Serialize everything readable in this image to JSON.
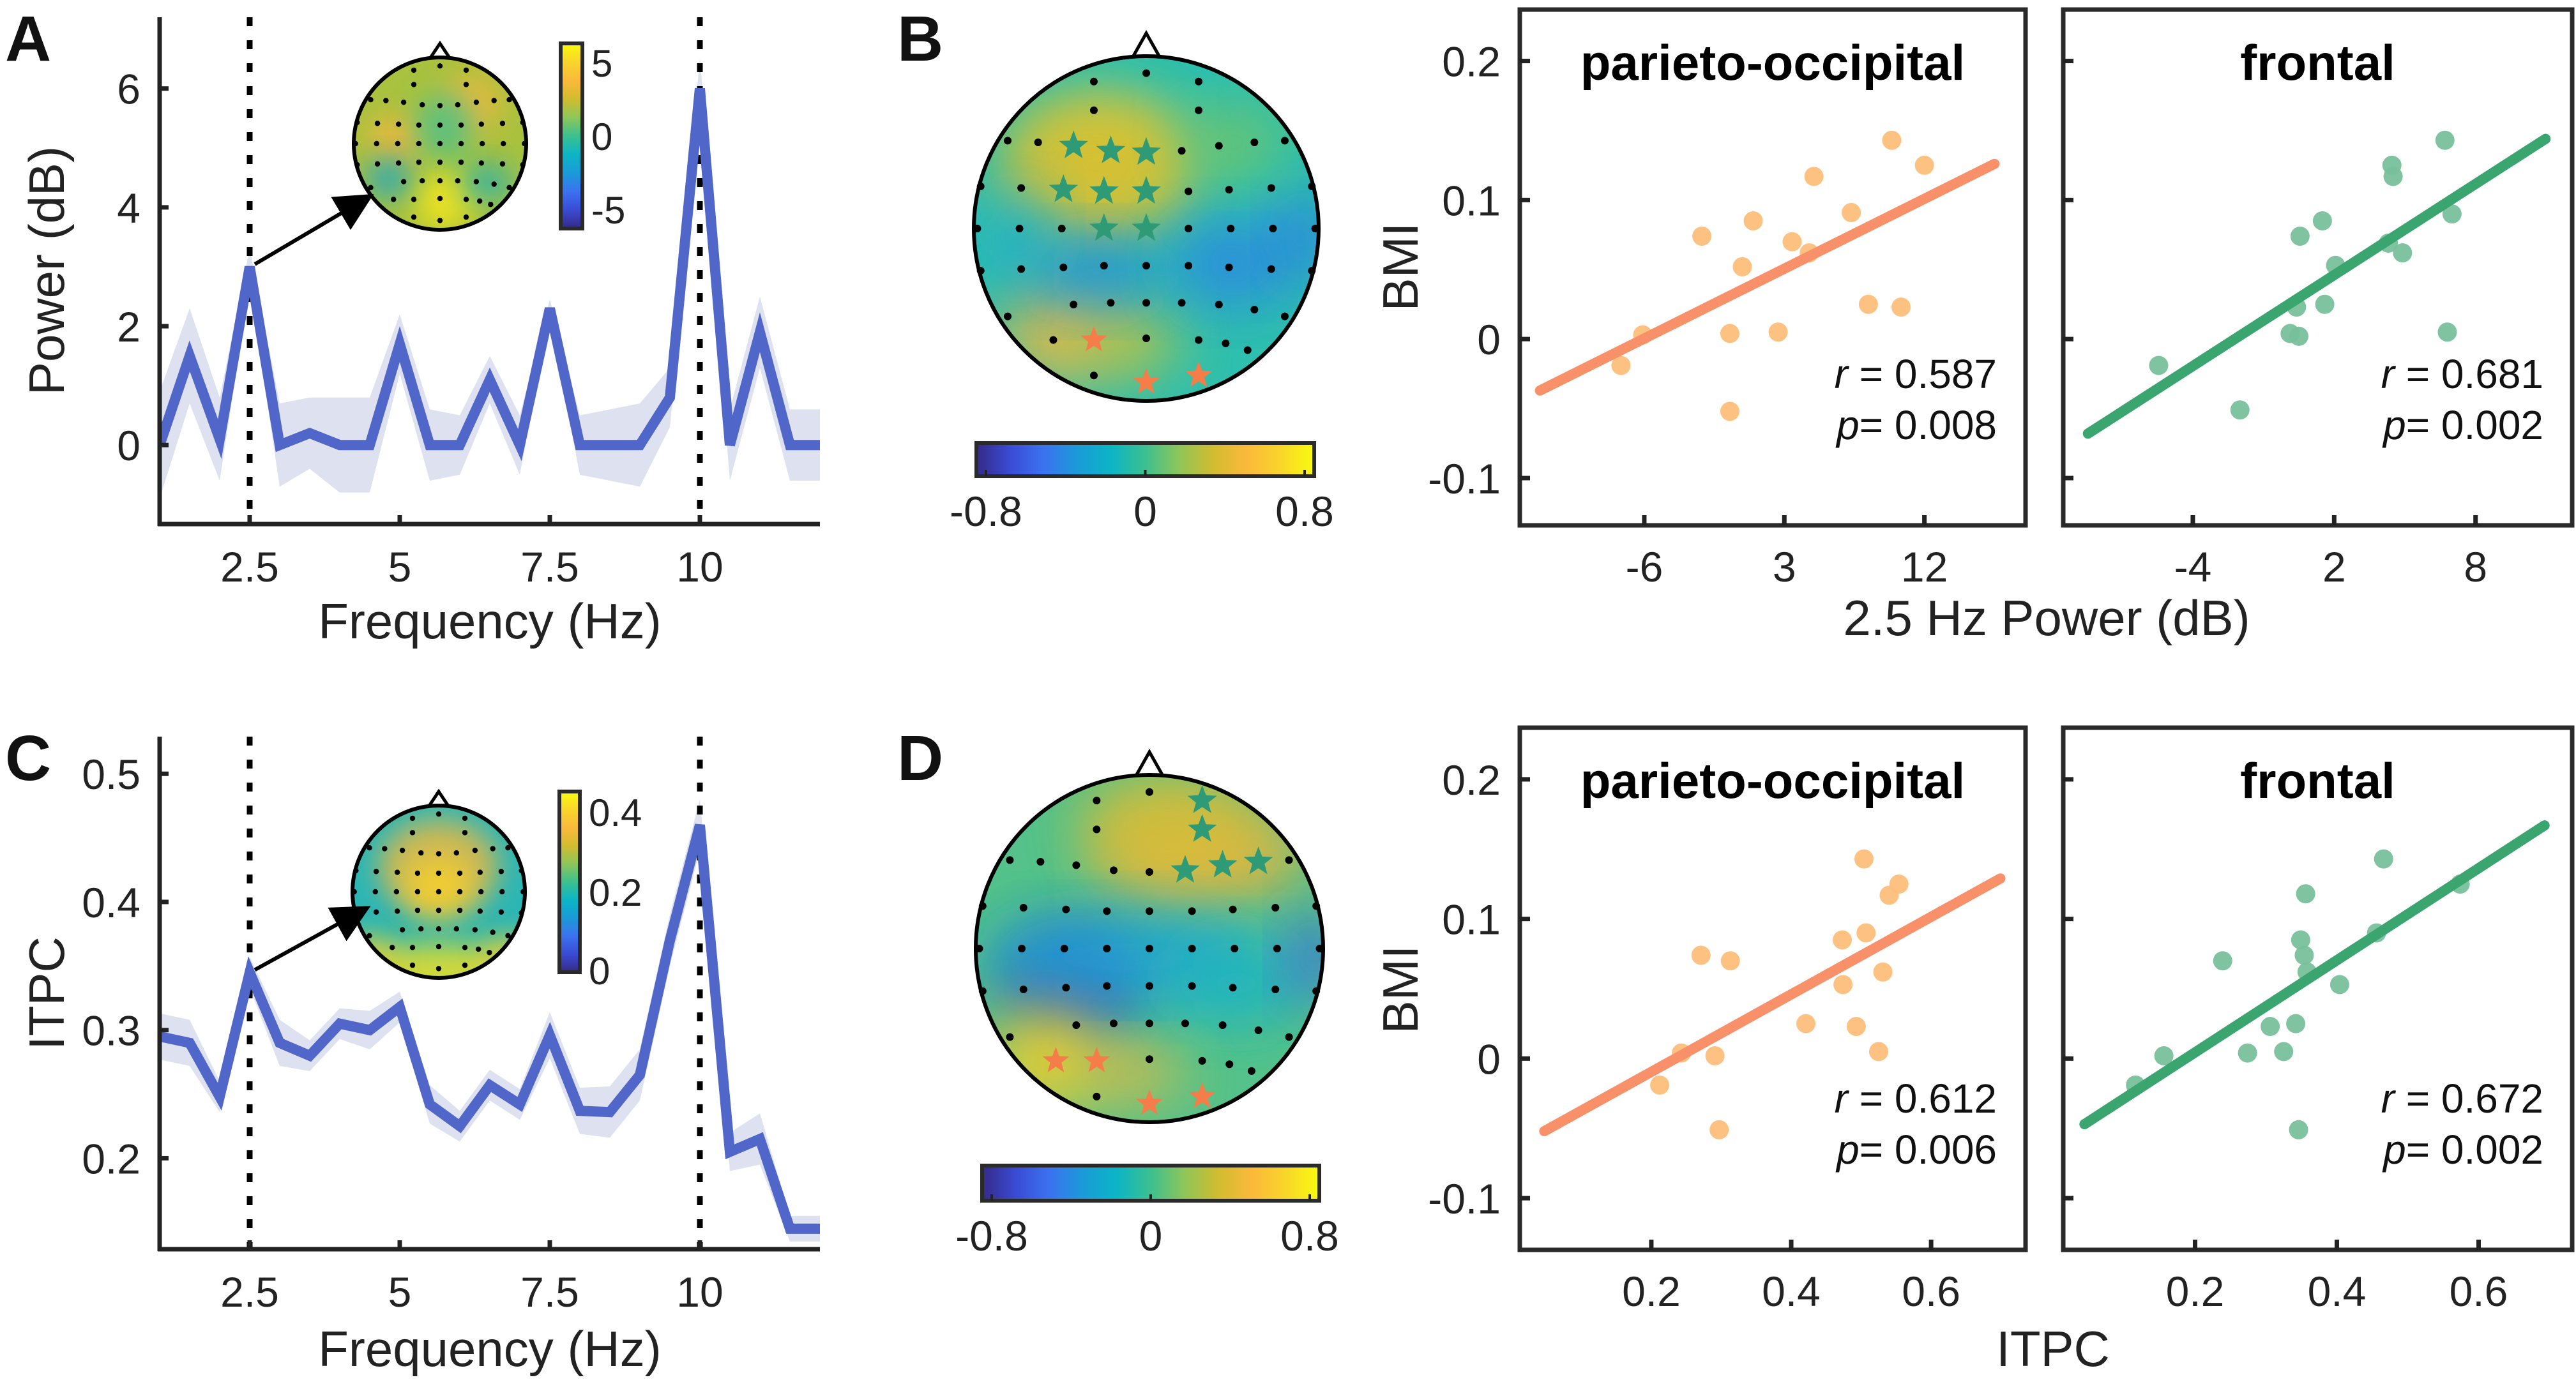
{
  "figure": {
    "panels": [
      "A",
      "B",
      "C",
      "D"
    ]
  },
  "colors": {
    "spectrum_line": "#5066c8",
    "spectrum_band": "#dde1f0",
    "parieto_marker": "#fdbf7a",
    "parieto_line": "#f8916a",
    "frontal_marker": "#78c09b",
    "frontal_line": "#3aa56e",
    "star_frontal": "#2f9a76",
    "star_parietal": "#f47d4a",
    "parula": [
      "#352a87",
      "#3a4bd4",
      "#3b72f0",
      "#1a9bd8",
      "#0cb5c5",
      "#3cc08f",
      "#8ec659",
      "#d1bc2f",
      "#fbb93b",
      "#f9d52a",
      "#f9fb0e"
    ]
  },
  "chart_data": [
    {
      "id": "A",
      "type": "line",
      "panel_label": "A",
      "title": "",
      "xlabel": "Frequency (Hz)",
      "ylabel": "Power (dB)",
      "xlim": [
        1,
        12
      ],
      "ylim": [
        -1.33,
        7.2
      ],
      "xticks": [
        2.5,
        5,
        7.5,
        10
      ],
      "xtick_labels": [
        "2.5",
        "5",
        "7.5",
        "10"
      ],
      "yticks": [
        0,
        2,
        4,
        6
      ],
      "ytick_labels": [
        "0",
        "2",
        "4",
        "6"
      ],
      "reference_lines_x": [
        2.5,
        10
      ],
      "x": [
        1,
        1.5,
        2,
        2.5,
        3,
        3.5,
        4,
        4.5,
        5,
        5.5,
        6,
        6.5,
        7,
        7.5,
        8,
        8.5,
        9,
        9.5,
        10,
        10.5,
        11,
        11.5,
        12
      ],
      "series": [
        {
          "name": "Power",
          "values": [
            0,
            1.5,
            0.1,
            3.0,
            0,
            0.2,
            0,
            0,
            1.7,
            0,
            0,
            1.1,
            0,
            2.3,
            0,
            0,
            0,
            0.8,
            6.0,
            0,
            1.9,
            0,
            0
          ],
          "error": [
            0.9,
            0.8,
            0.7,
            0.3,
            0.7,
            0.6,
            0.8,
            0.8,
            0.5,
            0.6,
            0.5,
            0.4,
            0.5,
            0.15,
            0.5,
            0.6,
            0.7,
            0.5,
            0.5,
            0.6,
            0.6,
            0.6,
            0.6
          ]
        }
      ],
      "grid": false,
      "inset": {
        "type": "topomap",
        "arrow_from_x": 2.5,
        "colorbar_ticks": [
          "5",
          "0",
          "-5"
        ],
        "colorbar_range": [
          -5,
          5
        ]
      }
    },
    {
      "id": "C",
      "type": "line",
      "panel_label": "C",
      "title": "",
      "xlabel": "Frequency (Hz)",
      "ylabel": "ITPC",
      "xlim": [
        1,
        12
      ],
      "ylim": [
        0.129,
        0.529
      ],
      "xticks": [
        2.5,
        5,
        7.5,
        10
      ],
      "xtick_labels": [
        "2.5",
        "5",
        "7.5",
        "10"
      ],
      "yticks": [
        0.2,
        0.3,
        0.4,
        0.5
      ],
      "ytick_labels": [
        "0.2",
        "0.3",
        "0.4",
        "0.5"
      ],
      "reference_lines_x": [
        2.5,
        10
      ],
      "x": [
        1,
        1.5,
        2,
        2.5,
        3,
        3.5,
        4,
        4.5,
        5,
        5.5,
        6,
        6.5,
        7,
        7.5,
        8,
        8.5,
        9,
        9.5,
        10,
        10.5,
        11,
        11.5,
        12
      ],
      "series": [
        {
          "name": "ITPC",
          "values": [
            0.295,
            0.29,
            0.248,
            0.345,
            0.29,
            0.28,
            0.305,
            0.3,
            0.318,
            0.242,
            0.225,
            0.257,
            0.242,
            0.296,
            0.237,
            0.236,
            0.265,
            0.37,
            0.46,
            0.205,
            0.215,
            0.145,
            0.145
          ],
          "error": [
            0.018,
            0.018,
            0.012,
            0.012,
            0.018,
            0.012,
            0.012,
            0.015,
            0.012,
            0.015,
            0.012,
            0.012,
            0.012,
            0.018,
            0.018,
            0.02,
            0.02,
            0.02,
            0.02,
            0.015,
            0.02,
            0.01,
            0.01
          ]
        }
      ],
      "grid": false,
      "inset": {
        "type": "topomap",
        "arrow_from_x": 2.5,
        "colorbar_ticks": [
          "0.4",
          "0.2",
          "0"
        ],
        "colorbar_range": [
          0,
          0.45
        ]
      }
    },
    {
      "id": "B-topo",
      "type": "heatmap",
      "panel_label": "B",
      "description": "topographic correlation map",
      "colorbar_ticks": [
        "-0.8",
        "0",
        "0.8"
      ],
      "colorbar_range": [
        -0.8,
        0.8
      ],
      "significant_frontal_electrodes": [
        [
          2,
          2
        ],
        [
          2,
          3
        ],
        [
          2,
          4
        ],
        [
          3,
          2
        ],
        [
          3,
          3
        ],
        [
          3,
          4
        ],
        [
          4,
          3
        ],
        [
          4,
          4
        ]
      ],
      "significant_parietal_electrodes": [
        [
          7,
          1
        ],
        [
          8,
          1
        ],
        [
          8,
          2
        ],
        [
          8,
          3
        ]
      ]
    },
    {
      "id": "D-topo",
      "type": "heatmap",
      "panel_label": "D",
      "description": "topographic correlation map",
      "colorbar_ticks": [
        "-0.8",
        "0",
        "0.8"
      ],
      "colorbar_range": [
        -0.8,
        0.8
      ],
      "significant_frontal_electrodes": [
        [
          0,
          4
        ],
        [
          0,
          5
        ],
        [
          1,
          5
        ],
        [
          2,
          5
        ],
        [
          2,
          6
        ],
        [
          2,
          7
        ]
      ],
      "significant_parietal_electrodes": [
        [
          7,
          0
        ],
        [
          7,
          1
        ],
        [
          8,
          1
        ],
        [
          8,
          2
        ],
        [
          8,
          3
        ],
        [
          9,
          3
        ]
      ]
    },
    {
      "id": "B-po",
      "type": "scatter",
      "title": "parieto-occipital",
      "xlabel": "2.5 Hz Power (dB)",
      "ylabel": "BMI",
      "xlim": [
        -14,
        18.5
      ],
      "ylim": [
        -0.134,
        0.237
      ],
      "xticks": [
        -6,
        3,
        12
      ],
      "xtick_labels": [
        "-6",
        "3",
        "12"
      ],
      "yticks": [
        -0.1,
        0,
        0.1,
        0.2
      ],
      "ytick_labels": [
        "-0.1",
        "0",
        "0.1",
        "0.2"
      ],
      "points": [
        [
          -7.5,
          -0.019
        ],
        [
          -6.1,
          0.003
        ],
        [
          -2.3,
          0.074
        ],
        [
          -0.5,
          0.004
        ],
        [
          -0.5,
          -0.052
        ],
        [
          0.3,
          0.052
        ],
        [
          1.0,
          0.085
        ],
        [
          2.6,
          0.005
        ],
        [
          3.5,
          0.07
        ],
        [
          4.6,
          0.062
        ],
        [
          4.9,
          0.117
        ],
        [
          7.3,
          0.091
        ],
        [
          8.4,
          0.025
        ],
        [
          9.9,
          0.143
        ],
        [
          10.5,
          0.023
        ],
        [
          12.0,
          0.125
        ]
      ],
      "fit_line": [
        [
          -12.7,
          -0.037
        ],
        [
          16.5,
          0.126
        ]
      ],
      "r_label": "r",
      "r_value": "= 0.587",
      "p_label": "p",
      "p_value": "= 0.008",
      "color_key": "parieto"
    },
    {
      "id": "B-fr",
      "type": "scatter",
      "title": "frontal",
      "xlabel": "2.5 Hz Power (dB)",
      "ylabel": "",
      "xlim": [
        -9.5,
        12.1
      ],
      "ylim": [
        -0.134,
        0.237
      ],
      "xticks": [
        -4,
        2,
        8
      ],
      "xtick_labels": [
        "-4",
        "2",
        "8"
      ],
      "yticks": [
        -0.1,
        0,
        0.1,
        0.2
      ],
      "ytick_labels": [],
      "points": [
        [
          -5.45,
          -0.019
        ],
        [
          -2.0,
          -0.051
        ],
        [
          0.13,
          0.004
        ],
        [
          0.5,
          0.002
        ],
        [
          0.4,
          0.023
        ],
        [
          0.55,
          0.074
        ],
        [
          1.5,
          0.085
        ],
        [
          2.06,
          0.053
        ],
        [
          1.6,
          0.025
        ],
        [
          4.3,
          0.069
        ],
        [
          4.9,
          0.062
        ],
        [
          4.45,
          0.125
        ],
        [
          4.5,
          0.117
        ],
        [
          6.7,
          0.143
        ],
        [
          7.0,
          0.09
        ],
        [
          6.8,
          0.005
        ]
      ],
      "fit_line": [
        [
          -8.45,
          -0.068
        ],
        [
          10.97,
          0.144
        ]
      ],
      "r_label": "r",
      "r_value": "= 0.681",
      "p_label": "p",
      "p_value": "= 0.002",
      "color_key": "frontal"
    },
    {
      "id": "D-po",
      "type": "scatter",
      "title": "parieto-occipital",
      "xlabel": "ITPC",
      "ylabel": "BMI",
      "xlim": [
        0.012,
        0.735
      ],
      "ylim": [
        -0.137,
        0.237
      ],
      "xticks": [
        0.2,
        0.4,
        0.6
      ],
      "xtick_labels": [
        "0.2",
        "0.4",
        "0.6"
      ],
      "yticks": [
        -0.1,
        0,
        0.1,
        0.2
      ],
      "ytick_labels": [
        "-0.1",
        "0",
        "0.1",
        "0.2"
      ],
      "points": [
        [
          0.212,
          -0.019
        ],
        [
          0.243,
          0.004
        ],
        [
          0.271,
          0.074
        ],
        [
          0.291,
          0.002
        ],
        [
          0.297,
          -0.051
        ],
        [
          0.313,
          0.07
        ],
        [
          0.421,
          0.025
        ],
        [
          0.473,
          0.085
        ],
        [
          0.474,
          0.053
        ],
        [
          0.493,
          0.023
        ],
        [
          0.504,
          0.143
        ],
        [
          0.507,
          0.09
        ],
        [
          0.525,
          0.005
        ],
        [
          0.531,
          0.062
        ],
        [
          0.54,
          0.117
        ],
        [
          0.554,
          0.125
        ]
      ],
      "fit_line": [
        [
          0.047,
          -0.052
        ],
        [
          0.699,
          0.129
        ]
      ],
      "r_label": "r",
      "r_value": "= 0.612",
      "p_label": "p",
      "p_value": "= 0.006",
      "color_key": "parieto"
    },
    {
      "id": "D-fr",
      "type": "scatter",
      "title": "frontal",
      "xlabel": "ITPC",
      "ylabel": "",
      "xlim": [
        0.014,
        0.732
      ],
      "ylim": [
        -0.137,
        0.237
      ],
      "xticks": [
        0.2,
        0.4,
        0.6
      ],
      "xtick_labels": [
        "0.2",
        "0.4",
        "0.6"
      ],
      "yticks": [
        -0.1,
        0,
        0.1,
        0.2
      ],
      "ytick_labels": [],
      "points": [
        [
          0.116,
          -0.019
        ],
        [
          0.156,
          0.002
        ],
        [
          0.239,
          0.07
        ],
        [
          0.274,
          0.004
        ],
        [
          0.306,
          0.023
        ],
        [
          0.325,
          0.005
        ],
        [
          0.342,
          0.025
        ],
        [
          0.346,
          -0.051
        ],
        [
          0.349,
          0.085
        ],
        [
          0.354,
          0.074
        ],
        [
          0.358,
          0.062
        ],
        [
          0.356,
          0.118
        ],
        [
          0.404,
          0.053
        ],
        [
          0.456,
          0.09
        ],
        [
          0.466,
          0.143
        ],
        [
          0.574,
          0.125
        ]
      ],
      "fit_line": [
        [
          0.044,
          -0.047
        ],
        [
          0.693,
          0.167
        ]
      ],
      "r_label": "r",
      "r_value": "= 0.672",
      "p_label": "p",
      "p_value": "= 0.002",
      "color_key": "frontal"
    }
  ],
  "shared_labels": {
    "top_scatter_xlabel": "2.5 Hz Power (dB)",
    "bottom_scatter_xlabel": "ITPC",
    "scatter_ylabel": "BMI"
  }
}
